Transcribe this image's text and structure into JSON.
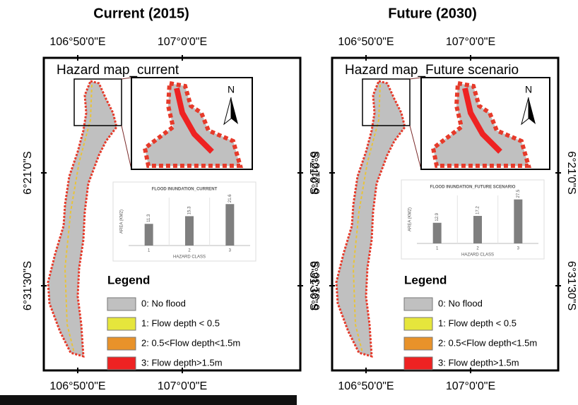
{
  "panels": [
    {
      "heading": "Current (2015)",
      "map_title": "Hazard map_current",
      "top_labels": [
        "106°50'0\"E",
        "107°0'0\"E"
      ],
      "bottom_labels": [
        "106°50'0\"E",
        "107°0'0\"E"
      ],
      "left_labels": [
        "6°21'0\"S",
        "6°31'30\"S"
      ],
      "right_labels": [
        "6°21'0\"S",
        "6°31'30\"S"
      ],
      "north": "N",
      "inset_chart": {
        "type": "bar",
        "title": "FLOOD INUNDATION_CURRENT",
        "x_label": "HAZARD CLASS",
        "y_label": "AREA (KM2)",
        "categories": [
          "1",
          "2",
          "3"
        ],
        "values": [
          11.3,
          15.3,
          21.6
        ],
        "color": "#7f7f7f",
        "ylim": [
          0,
          25
        ]
      },
      "legend": {
        "title": "Legend",
        "items": [
          {
            "label": "0: No flood",
            "color": "#c0c0c0"
          },
          {
            "label": "1: Flow depth < 0.5",
            "color": "#e6e63c"
          },
          {
            "label": "2: 0.5<Flow depth<1.5m",
            "color": "#e8922a"
          },
          {
            "label": "3: Flow depth>1.5m",
            "color": "#ee2222"
          }
        ]
      }
    },
    {
      "heading": "Future (2030)",
      "map_title": "Hazard map_Future scenario",
      "top_labels": [
        "106°50'0\"E",
        "107°0'0\"E"
      ],
      "bottom_labels": [
        "106°50'0\"E",
        "107°0'0\"E"
      ],
      "left_labels": [
        "6°21'0\"S",
        "6°31'30\"S"
      ],
      "right_labels": [
        "6°21'0\"S",
        "6°31'30\"S"
      ],
      "north": "N",
      "inset_chart": {
        "type": "bar",
        "title": "FLOOD INUNDATION_FUTURE SCENARIO",
        "x_label": "HAZARD CLASS",
        "y_label": "AREA (KM2)",
        "categories": [
          "1",
          "2",
          "3"
        ],
        "values": [
          12.9,
          17.2,
          27.5
        ],
        "color": "#7f7f7f",
        "ylim": [
          0,
          30
        ]
      },
      "legend": {
        "title": "Legend",
        "items": [
          {
            "label": "0: No flood",
            "color": "#c0c0c0"
          },
          {
            "label": "1: Flow depth < 0.5",
            "color": "#e6e63c"
          },
          {
            "label": "2: 0.5<Flow depth<1.5m",
            "color": "#e8922a"
          },
          {
            "label": "3: Flow depth>1.5m",
            "color": "#ee2222"
          }
        ]
      }
    }
  ]
}
